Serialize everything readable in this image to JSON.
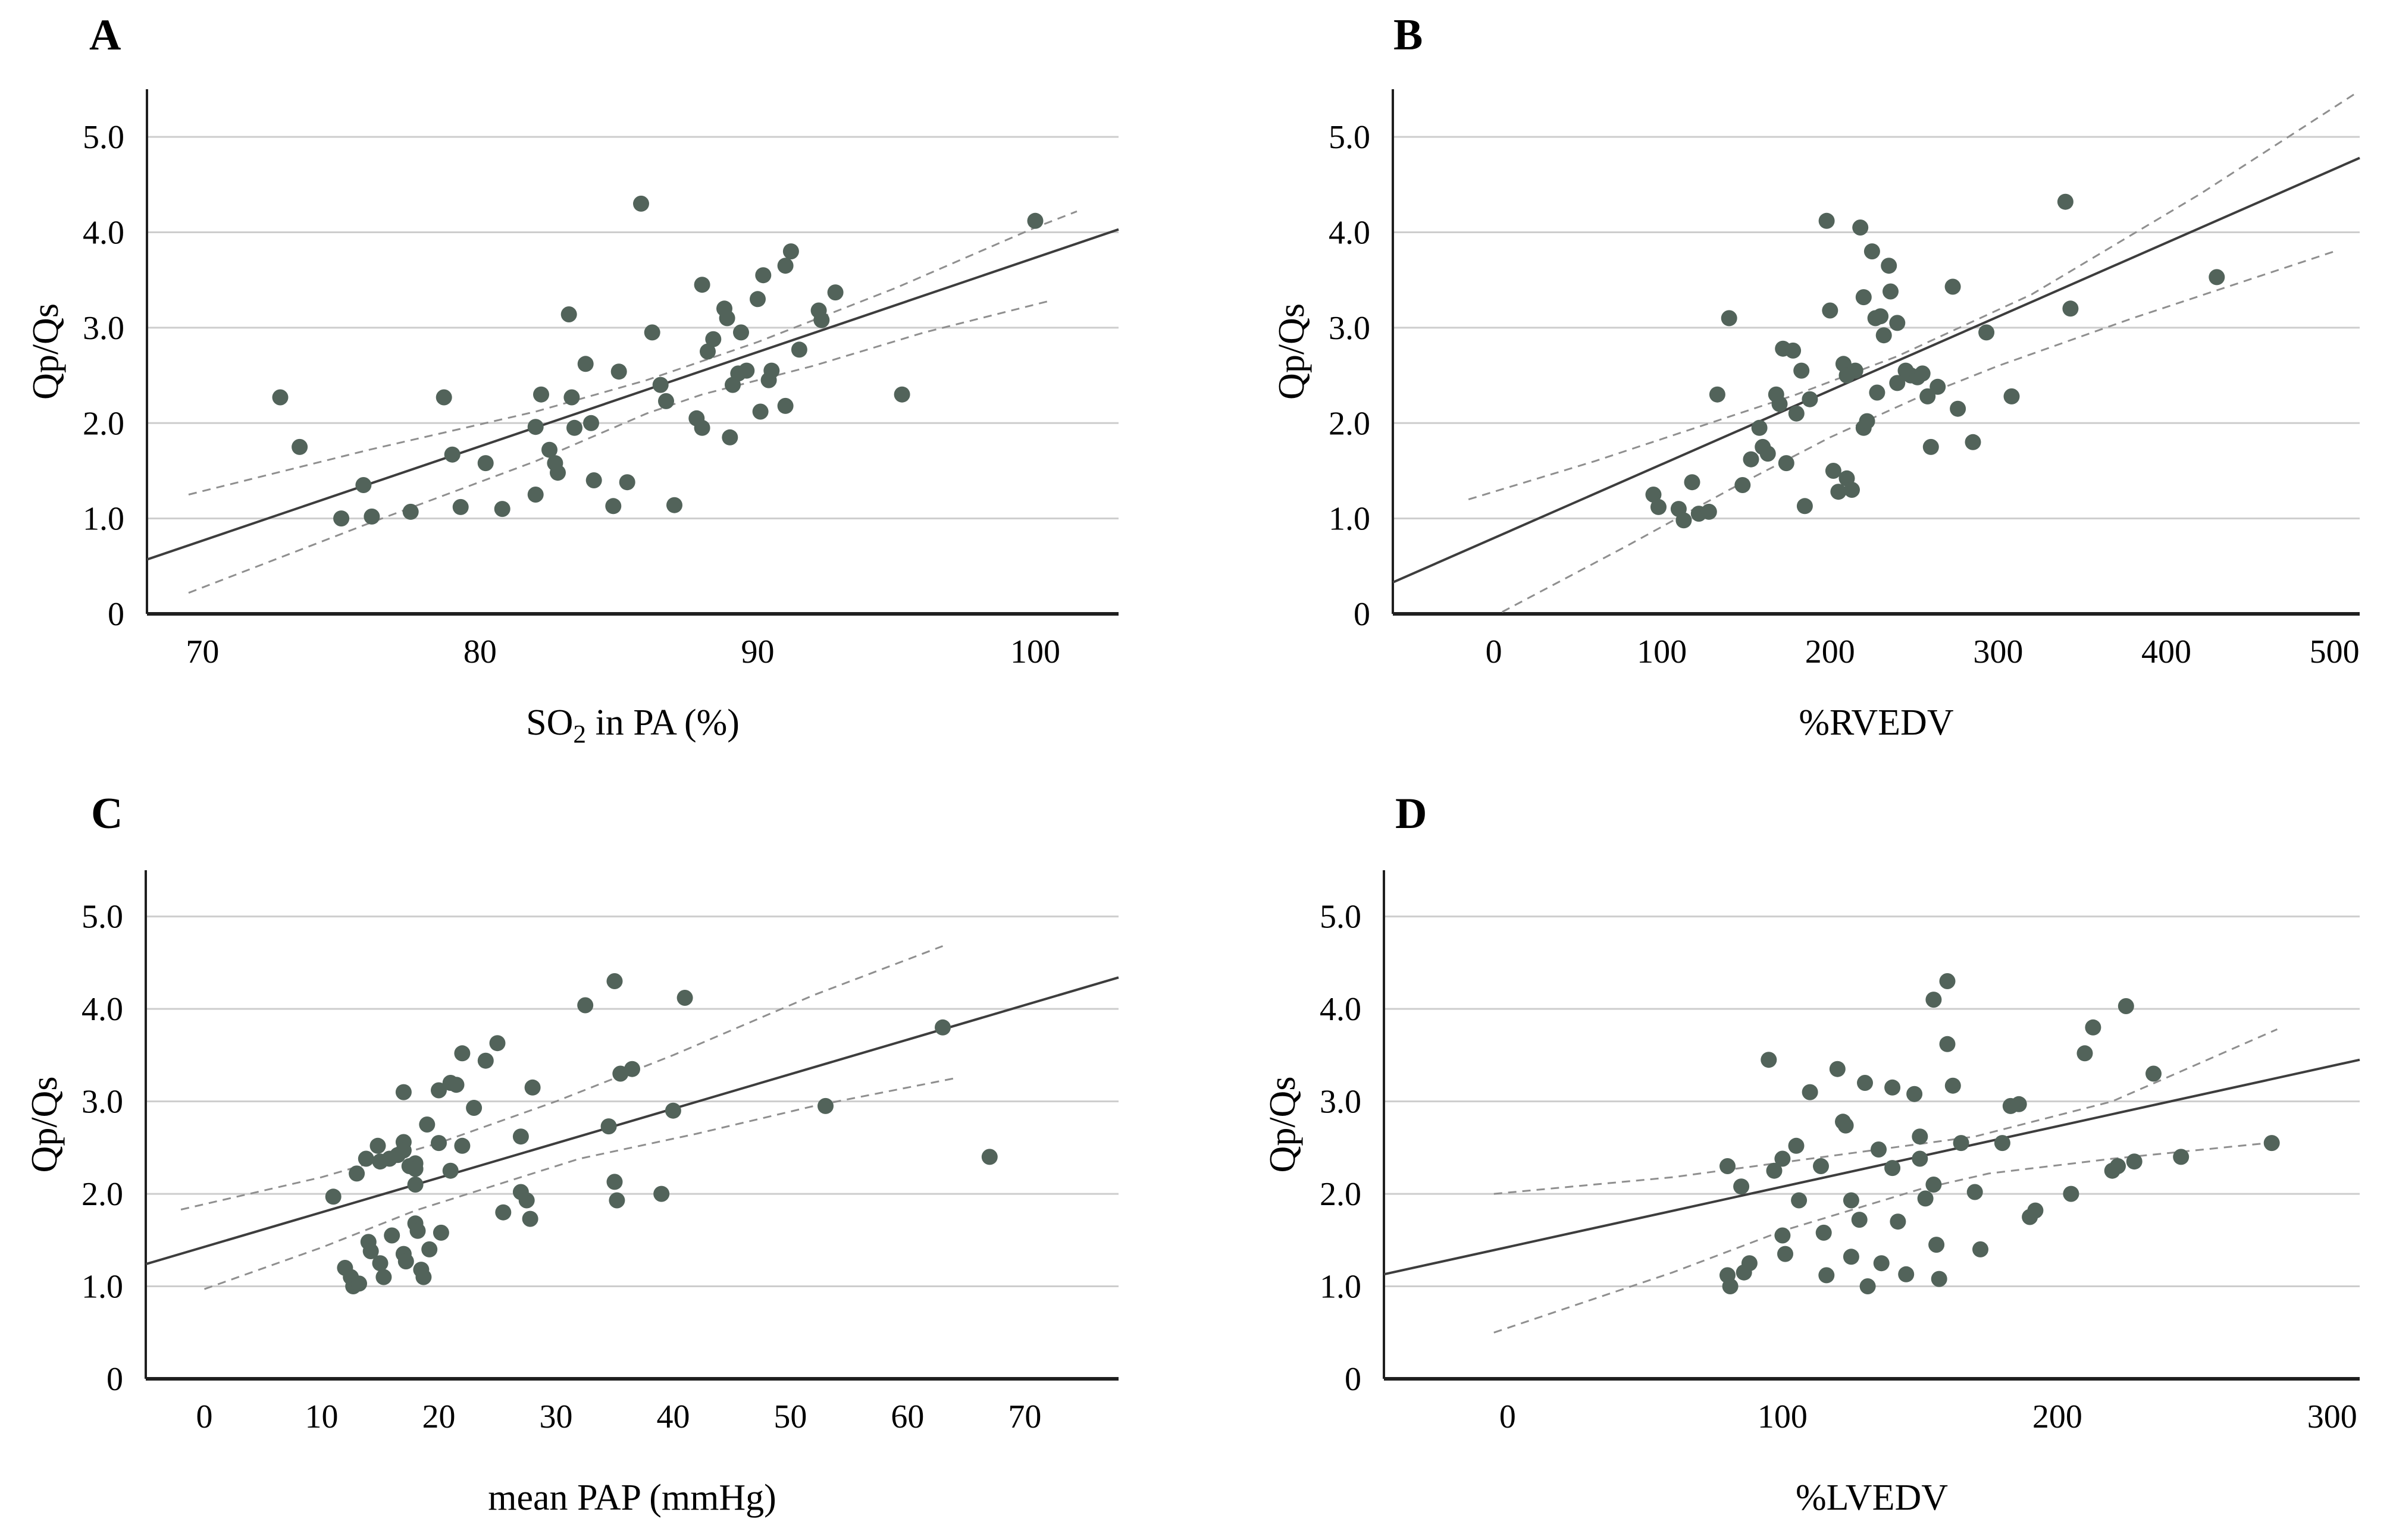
{
  "colors": {
    "point": "#52635a",
    "fit_line": "#3d3d3d",
    "ci_line": "#8f8f8f",
    "grid": "#cdcdcd",
    "axis": "#1f1f1f",
    "background": "#ffffff",
    "text": "#000000"
  },
  "chart_data": [
    {
      "label": "A",
      "type": "scatter",
      "ylabel": "Qp/Qs",
      "xlabel_segments": [
        {
          "t": "SO"
        },
        {
          "t": "2",
          "sub": true
        },
        {
          "t": " in PA (%)"
        }
      ],
      "x_domain": [
        68,
        103
      ],
      "y_domain": [
        0,
        5.5
      ],
      "x_tick_vals": [
        70,
        80,
        90,
        100
      ],
      "x_tick_labels": [
        "70",
        "80",
        "90",
        "100"
      ],
      "y_tick_vals": [
        0,
        1,
        2,
        3,
        4,
        5
      ],
      "y_tick_labels": [
        "0",
        "1.0",
        "2.0",
        "3.0",
        "4.0",
        "5.0"
      ],
      "grid": "horizontal",
      "fit_line": [
        [
          68,
          0.57
        ],
        [
          103,
          4.03
        ]
      ],
      "ci_upper": [
        [
          69.5,
          1.25
        ],
        [
          76,
          1.72
        ],
        [
          82,
          2.12
        ],
        [
          86,
          2.45
        ],
        [
          90,
          2.85
        ],
        [
          95,
          3.42
        ],
        [
          100,
          4.05
        ],
        [
          101.5,
          4.22
        ]
      ],
      "ci_lower": [
        [
          69.5,
          0.22
        ],
        [
          76,
          0.95
        ],
        [
          82,
          1.6
        ],
        [
          86,
          2.1
        ],
        [
          88,
          2.3
        ],
        [
          92,
          2.6
        ],
        [
          96,
          2.95
        ],
        [
          100.5,
          3.28
        ]
      ],
      "points": [
        [
          72.8,
          2.27
        ],
        [
          73.5,
          1.75
        ],
        [
          75.0,
          1.0
        ],
        [
          75.8,
          1.35
        ],
        [
          76.1,
          1.02
        ],
        [
          77.5,
          1.07
        ],
        [
          78.7,
          2.27
        ],
        [
          79.0,
          1.67
        ],
        [
          79.3,
          1.12
        ],
        [
          80.2,
          1.58
        ],
        [
          80.8,
          1.1
        ],
        [
          82.0,
          1.96
        ],
        [
          82.0,
          1.25
        ],
        [
          82.2,
          2.3
        ],
        [
          82.5,
          1.72
        ],
        [
          82.7,
          1.58
        ],
        [
          82.8,
          1.48
        ],
        [
          83.2,
          3.14
        ],
        [
          83.3,
          2.27
        ],
        [
          83.4,
          1.95
        ],
        [
          83.8,
          2.62
        ],
        [
          84.0,
          2.0
        ],
        [
          84.1,
          1.4
        ],
        [
          84.8,
          1.13
        ],
        [
          85.0,
          2.54
        ],
        [
          85.3,
          1.38
        ],
        [
          85.8,
          4.3
        ],
        [
          86.2,
          2.95
        ],
        [
          86.5,
          2.4
        ],
        [
          86.7,
          2.23
        ],
        [
          87.0,
          1.14
        ],
        [
          87.8,
          2.05
        ],
        [
          88.0,
          1.95
        ],
        [
          88.0,
          3.45
        ],
        [
          88.2,
          2.75
        ],
        [
          88.4,
          2.88
        ],
        [
          88.8,
          3.2
        ],
        [
          88.9,
          3.1
        ],
        [
          89.0,
          1.85
        ],
        [
          89.1,
          2.4
        ],
        [
          89.3,
          2.52
        ],
        [
          89.4,
          2.95
        ],
        [
          89.6,
          2.55
        ],
        [
          90.0,
          3.3
        ],
        [
          90.1,
          2.12
        ],
        [
          90.2,
          3.55
        ],
        [
          90.4,
          2.45
        ],
        [
          90.5,
          2.55
        ],
        [
          91.0,
          3.65
        ],
        [
          91.0,
          2.18
        ],
        [
          91.2,
          3.8
        ],
        [
          91.5,
          2.77
        ],
        [
          92.2,
          3.18
        ],
        [
          92.3,
          3.08
        ],
        [
          92.8,
          3.37
        ],
        [
          95.2,
          2.3
        ],
        [
          100.0,
          4.12
        ]
      ]
    },
    {
      "label": "B",
      "type": "scatter",
      "ylabel": "Qp/Qs",
      "xlabel_segments": [
        {
          "t": "%RVEDV"
        }
      ],
      "x_domain": [
        -60,
        515
      ],
      "y_domain": [
        0,
        5.5
      ],
      "x_tick_vals": [
        0,
        100,
        200,
        300,
        400,
        500
      ],
      "x_tick_labels": [
        "0",
        "100",
        "200",
        "300",
        "400",
        "500"
      ],
      "y_tick_vals": [
        0,
        1,
        2,
        3,
        4,
        5
      ],
      "y_tick_labels": [
        "0",
        "1.0",
        "2.0",
        "3.0",
        "4.0",
        "5.0"
      ],
      "grid": "horizontal",
      "fit_line": [
        [
          -60,
          0.33
        ],
        [
          515,
          4.78
        ]
      ],
      "ci_upper": [
        [
          -15,
          1.2
        ],
        [
          60,
          1.6
        ],
        [
          120,
          1.95
        ],
        [
          180,
          2.3
        ],
        [
          240,
          2.7
        ],
        [
          320,
          3.35
        ],
        [
          420,
          4.4
        ],
        [
          512,
          5.45
        ]
      ],
      "ci_lower": [
        [
          5,
          0.02
        ],
        [
          80,
          0.72
        ],
        [
          140,
          1.3
        ],
        [
          200,
          1.85
        ],
        [
          250,
          2.25
        ],
        [
          300,
          2.6
        ],
        [
          380,
          3.1
        ],
        [
          500,
          3.8
        ]
      ],
      "points": [
        [
          95,
          1.25
        ],
        [
          98,
          1.12
        ],
        [
          110,
          1.1
        ],
        [
          113,
          0.98
        ],
        [
          118,
          1.38
        ],
        [
          122,
          1.05
        ],
        [
          128,
          1.07
        ],
        [
          133,
          2.3
        ],
        [
          140,
          3.1
        ],
        [
          148,
          1.35
        ],
        [
          153,
          1.62
        ],
        [
          158,
          1.95
        ],
        [
          160,
          1.75
        ],
        [
          163,
          1.68
        ],
        [
          168,
          2.3
        ],
        [
          170,
          2.2
        ],
        [
          172,
          2.78
        ],
        [
          174,
          1.58
        ],
        [
          178,
          2.76
        ],
        [
          180,
          2.1
        ],
        [
          183,
          2.55
        ],
        [
          185,
          1.13
        ],
        [
          188,
          2.25
        ],
        [
          198,
          4.12
        ],
        [
          200,
          3.18
        ],
        [
          202,
          1.5
        ],
        [
          205,
          1.28
        ],
        [
          208,
          2.62
        ],
        [
          210,
          2.5
        ],
        [
          210,
          1.42
        ],
        [
          213,
          1.3
        ],
        [
          215,
          2.55
        ],
        [
          218,
          4.05
        ],
        [
          220,
          3.32
        ],
        [
          220,
          1.95
        ],
        [
          222,
          2.02
        ],
        [
          225,
          3.8
        ],
        [
          227,
          3.1
        ],
        [
          228,
          2.32
        ],
        [
          230,
          3.12
        ],
        [
          232,
          2.92
        ],
        [
          235,
          3.65
        ],
        [
          236,
          3.38
        ],
        [
          240,
          3.05
        ],
        [
          240,
          2.42
        ],
        [
          245,
          2.55
        ],
        [
          248,
          2.5
        ],
        [
          252,
          2.48
        ],
        [
          255,
          2.52
        ],
        [
          258,
          2.28
        ],
        [
          260,
          1.75
        ],
        [
          264,
          2.38
        ],
        [
          273,
          3.43
        ],
        [
          276,
          2.15
        ],
        [
          285,
          1.8
        ],
        [
          293,
          2.95
        ],
        [
          308,
          2.28
        ],
        [
          340,
          4.32
        ],
        [
          343,
          3.2
        ],
        [
          430,
          3.53
        ]
      ]
    },
    {
      "label": "C",
      "type": "scatter",
      "ylabel": "Qp/Qs",
      "xlabel_segments": [
        {
          "t": "mean PAP (mmHg)"
        }
      ],
      "x_domain": [
        -5,
        78
      ],
      "y_domain": [
        0,
        5.5
      ],
      "x_tick_vals": [
        0,
        10,
        20,
        30,
        40,
        50,
        60,
        70
      ],
      "x_tick_labels": [
        "0",
        "10",
        "20",
        "30",
        "40",
        "50",
        "60",
        "70"
      ],
      "y_tick_vals": [
        0,
        1,
        2,
        3,
        4,
        5
      ],
      "y_tick_labels": [
        "0",
        "1.0",
        "2.0",
        "3.0",
        "4.0",
        "5.0"
      ],
      "grid": "horizontal",
      "fit_line": [
        [
          -5,
          1.24
        ],
        [
          78,
          4.34
        ]
      ],
      "ci_upper": [
        [
          -2,
          1.83
        ],
        [
          10,
          2.18
        ],
        [
          20,
          2.55
        ],
        [
          30,
          3.0
        ],
        [
          40,
          3.5
        ],
        [
          52,
          4.15
        ],
        [
          63,
          4.68
        ]
      ],
      "ci_lower": [
        [
          0,
          0.97
        ],
        [
          10,
          1.42
        ],
        [
          18,
          1.82
        ],
        [
          25,
          2.1
        ],
        [
          32,
          2.38
        ],
        [
          42,
          2.65
        ],
        [
          52,
          2.95
        ],
        [
          64,
          3.25
        ]
      ],
      "points": [
        [
          11,
          1.97
        ],
        [
          12,
          1.2
        ],
        [
          12.5,
          1.1
        ],
        [
          12.7,
          1.0
        ],
        [
          13.2,
          1.03
        ],
        [
          13,
          2.22
        ],
        [
          13.8,
          2.38
        ],
        [
          14,
          1.48
        ],
        [
          14.2,
          1.38
        ],
        [
          14.8,
          2.52
        ],
        [
          15,
          2.35
        ],
        [
          15,
          1.25
        ],
        [
          15.3,
          1.1
        ],
        [
          15.8,
          2.38
        ],
        [
          16,
          1.55
        ],
        [
          16.5,
          2.42
        ],
        [
          17,
          3.1
        ],
        [
          17,
          2.56
        ],
        [
          17,
          2.47
        ],
        [
          17,
          1.35
        ],
        [
          17.2,
          1.27
        ],
        [
          17.5,
          2.3
        ],
        [
          18,
          2.33
        ],
        [
          18,
          2.27
        ],
        [
          18,
          2.1
        ],
        [
          18,
          1.68
        ],
        [
          18.2,
          1.6
        ],
        [
          18.5,
          1.18
        ],
        [
          18.7,
          1.1
        ],
        [
          19,
          2.75
        ],
        [
          19.2,
          1.4
        ],
        [
          20,
          3.12
        ],
        [
          20,
          2.55
        ],
        [
          20.2,
          1.58
        ],
        [
          21,
          3.2
        ],
        [
          21,
          2.25
        ],
        [
          21.5,
          3.18
        ],
        [
          22,
          3.52
        ],
        [
          22,
          2.52
        ],
        [
          23,
          2.93
        ],
        [
          24,
          3.44
        ],
        [
          25,
          3.63
        ],
        [
          25.5,
          1.8
        ],
        [
          27,
          2.62
        ],
        [
          27,
          2.02
        ],
        [
          27.5,
          1.93
        ],
        [
          27.8,
          1.73
        ],
        [
          28,
          3.15
        ],
        [
          32.5,
          4.04
        ],
        [
          34.5,
          2.73
        ],
        [
          35,
          4.3
        ],
        [
          35,
          2.13
        ],
        [
          35.2,
          1.93
        ],
        [
          35.5,
          3.3
        ],
        [
          36.5,
          3.35
        ],
        [
          39,
          2.0
        ],
        [
          40,
          2.9
        ],
        [
          41,
          4.12
        ],
        [
          53,
          2.95
        ],
        [
          63,
          3.8
        ],
        [
          67,
          2.4
        ]
      ]
    },
    {
      "label": "D",
      "type": "scatter",
      "ylabel": "Qp/Qs",
      "xlabel_segments": [
        {
          "t": "%LVEDV"
        }
      ],
      "x_domain": [
        -45,
        310
      ],
      "y_domain": [
        0,
        5.5
      ],
      "x_tick_vals": [
        0,
        100,
        200,
        300
      ],
      "x_tick_labels": [
        "0",
        "100",
        "200",
        "300"
      ],
      "y_tick_vals": [
        0,
        1,
        2,
        3,
        4,
        5
      ],
      "y_tick_labels": [
        "0",
        "1.0",
        "2.0",
        "3.0",
        "4.0",
        "5.0"
      ],
      "grid": "horizontal",
      "fit_line": [
        [
          -45,
          1.13
        ],
        [
          310,
          3.45
        ]
      ],
      "ci_upper": [
        [
          -5,
          2.0
        ],
        [
          60,
          2.18
        ],
        [
          120,
          2.42
        ],
        [
          170,
          2.62
        ],
        [
          220,
          3.0
        ],
        [
          280,
          3.78
        ]
      ],
      "ci_lower": [
        [
          -5,
          0.5
        ],
        [
          60,
          1.15
        ],
        [
          100,
          1.6
        ],
        [
          150,
          2.05
        ],
        [
          175,
          2.22
        ],
        [
          220,
          2.38
        ],
        [
          280,
          2.56
        ]
      ],
      "points": [
        [
          80,
          2.3
        ],
        [
          80,
          1.12
        ],
        [
          81,
          1.0
        ],
        [
          85,
          2.08
        ],
        [
          86,
          1.15
        ],
        [
          88,
          1.25
        ],
        [
          95,
          3.45
        ],
        [
          97,
          2.25
        ],
        [
          100,
          2.38
        ],
        [
          100,
          1.55
        ],
        [
          101,
          1.35
        ],
        [
          105,
          2.52
        ],
        [
          106,
          1.93
        ],
        [
          110,
          3.1
        ],
        [
          114,
          2.3
        ],
        [
          115,
          1.58
        ],
        [
          116,
          1.12
        ],
        [
          120,
          3.35
        ],
        [
          122,
          2.78
        ],
        [
          123,
          2.74
        ],
        [
          125,
          1.93
        ],
        [
          125,
          1.32
        ],
        [
          128,
          1.72
        ],
        [
          130,
          3.2
        ],
        [
          131,
          1.0
        ],
        [
          135,
          2.48
        ],
        [
          136,
          1.25
        ],
        [
          140,
          3.15
        ],
        [
          140,
          2.28
        ],
        [
          142,
          1.7
        ],
        [
          145,
          1.13
        ],
        [
          148,
          3.08
        ],
        [
          150,
          2.62
        ],
        [
          150,
          2.38
        ],
        [
          152,
          1.95
        ],
        [
          155,
          4.1
        ],
        [
          155,
          2.1
        ],
        [
          156,
          1.45
        ],
        [
          157,
          1.08
        ],
        [
          160,
          4.3
        ],
        [
          160,
          3.62
        ],
        [
          162,
          3.17
        ],
        [
          165,
          2.55
        ],
        [
          170,
          2.02
        ],
        [
          172,
          1.4
        ],
        [
          180,
          2.55
        ],
        [
          183,
          2.95
        ],
        [
          186,
          2.97
        ],
        [
          190,
          1.75
        ],
        [
          192,
          1.82
        ],
        [
          205,
          2.0
        ],
        [
          210,
          3.52
        ],
        [
          213,
          3.8
        ],
        [
          220,
          2.25
        ],
        [
          222,
          2.3
        ],
        [
          225,
          4.03
        ],
        [
          228,
          2.35
        ],
        [
          235,
          3.3
        ],
        [
          245,
          2.4
        ],
        [
          278,
          2.55
        ]
      ]
    }
  ]
}
